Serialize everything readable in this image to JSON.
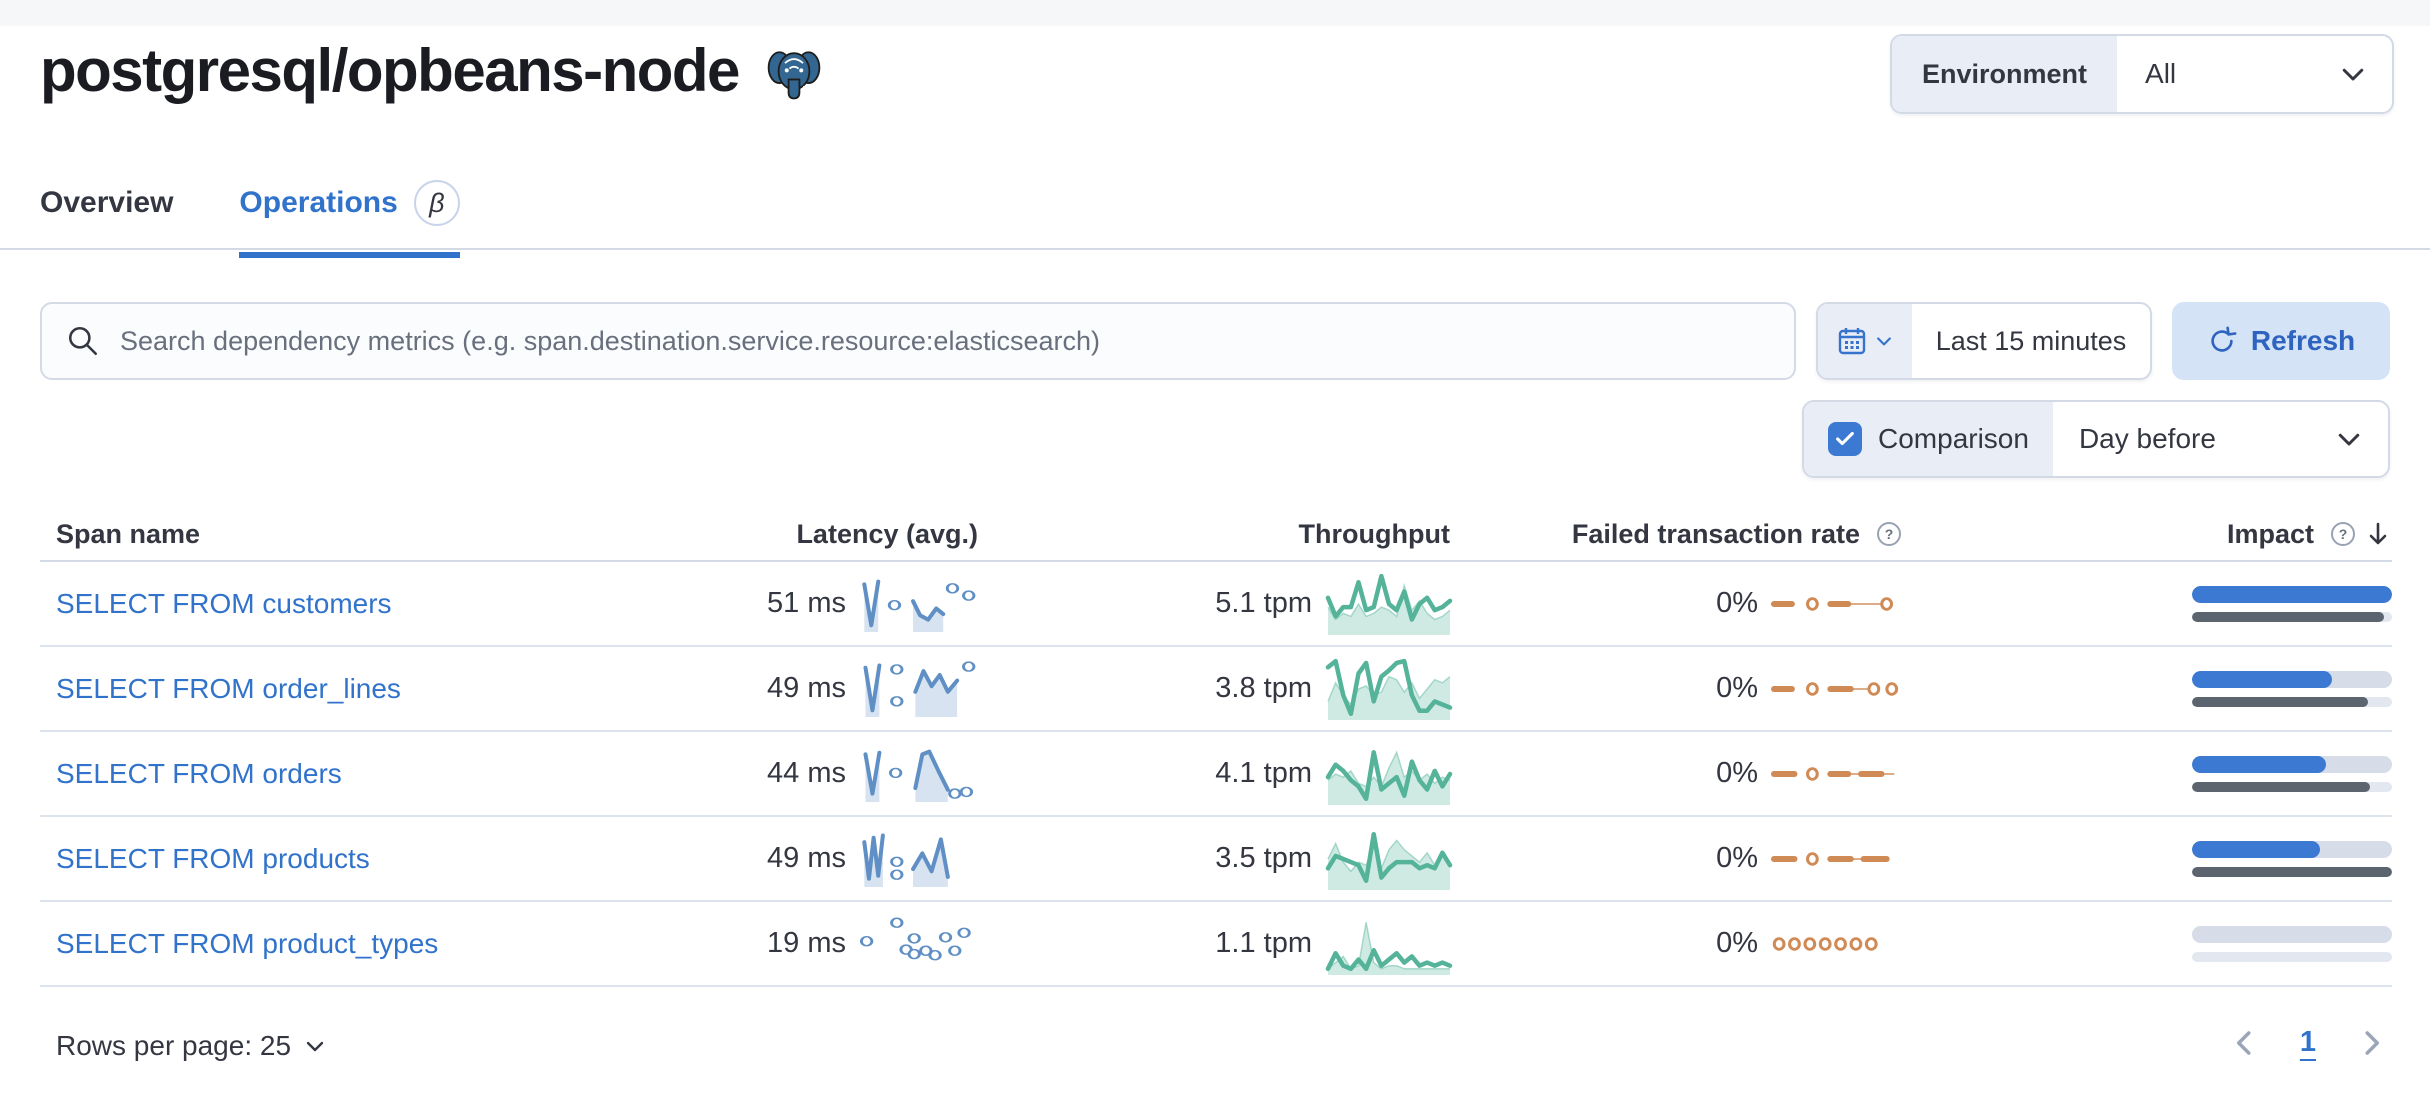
{
  "header": {
    "title": "postgresql/opbeans-node",
    "environment_label": "Environment",
    "environment_value": "All"
  },
  "tabs": [
    {
      "label": "Overview",
      "active": false
    },
    {
      "label": "Operations",
      "active": true,
      "beta": "β"
    }
  ],
  "toolbar": {
    "search_placeholder": "Search dependency metrics (e.g. span.destination.service.resource:elasticsearch)",
    "time_range": "Last 15 minutes",
    "refresh_label": "Refresh",
    "comparison_label": "Comparison",
    "comparison_checked": true,
    "comparison_value": "Day before"
  },
  "table": {
    "headers": {
      "span": "Span name",
      "latency": "Latency (avg.)",
      "throughput": "Throughput",
      "failed": "Failed transaction rate",
      "impact": "Impact"
    },
    "rows": [
      {
        "span": "SELECT FROM customers",
        "latency": "51 ms",
        "throughput": "5.1 tpm",
        "failed": "0%",
        "impact": 100,
        "impact_prev": 96,
        "latency_spark": {
          "segs": [
            [
              [
                2,
                15
              ],
              [
                8,
                88
              ],
              [
                14,
                10
              ]
            ],
            [
              [
                44,
                45
              ],
              [
                50,
                70
              ],
              [
                57,
                78
              ],
              [
                64,
                58
              ],
              [
                70,
                68
              ]
            ]
          ],
          "dots": [
            [
              28,
              52
            ],
            [
              78,
              22
            ],
            [
              92,
              35
            ]
          ]
        },
        "throughput_spark": {
          "cur": [
            40,
            70,
            55,
            55,
            15,
            60,
            55,
            5,
            50,
            60,
            30,
            75,
            50,
            40,
            60,
            55,
            45
          ],
          "prev": [
            55,
            75,
            65,
            70,
            50,
            70,
            65,
            55,
            60,
            70,
            20,
            60,
            45,
            65,
            75,
            70,
            60
          ]
        },
        "failed_spark": [
          {
            "t": "dash",
            "a": 0,
            "b": 14
          },
          {
            "t": "dot",
            "a": 30
          },
          {
            "t": "dash",
            "a": 44,
            "b": 58
          },
          {
            "t": "thin",
            "a": 58,
            "b": 86
          },
          {
            "t": "dot",
            "a": 88
          }
        ]
      },
      {
        "span": "SELECT FROM order_lines",
        "latency": "49 ms",
        "throughput": "3.8 tpm",
        "failed": "0%",
        "impact": 70,
        "impact_prev": 88,
        "latency_spark": {
          "segs": [
            [
              [
                3,
                12
              ],
              [
                9,
                88
              ],
              [
                15,
                8
              ]
            ],
            [
              [
                46,
                55
              ],
              [
                53,
                18
              ],
              [
                60,
                45
              ],
              [
                67,
                25
              ],
              [
                74,
                55
              ],
              [
                82,
                35
              ]
            ]
          ],
          "dots": [
            [
              30,
              15
            ],
            [
              30,
              72
            ],
            [
              92,
              10
            ]
          ]
        },
        "throughput_spark": {
          "cur": [
            15,
            5,
            60,
            90,
            25,
            8,
            70,
            30,
            20,
            8,
            5,
            60,
            85,
            85,
            70,
            75,
            80
          ],
          "prev": [
            70,
            40,
            60,
            75,
            50,
            45,
            60,
            55,
            30,
            35,
            55,
            40,
            65,
            50,
            35,
            40,
            30
          ]
        },
        "failed_spark": [
          {
            "t": "dash",
            "a": 0,
            "b": 14
          },
          {
            "t": "dot",
            "a": 30
          },
          {
            "t": "dash",
            "a": 44,
            "b": 60
          },
          {
            "t": "thin",
            "a": 60,
            "b": 76
          },
          {
            "t": "dot",
            "a": 78
          },
          {
            "t": "dot",
            "a": 92
          }
        ]
      },
      {
        "span": "SELECT FROM orders",
        "latency": "44 ms",
        "throughput": "4.1 tpm",
        "failed": "0%",
        "impact": 67,
        "impact_prev": 89,
        "latency_spark": {
          "segs": [
            [
              [
                3,
                15
              ],
              [
                9,
                85
              ],
              [
                15,
                12
              ]
            ],
            [
              [
                46,
                75
              ],
              [
                52,
                15
              ],
              [
                58,
                10
              ],
              [
                66,
                45
              ],
              [
                74,
                78
              ]
            ]
          ],
          "dots": [
            [
              29,
              48
            ],
            [
              80,
              85
            ],
            [
              90,
              82
            ]
          ]
        },
        "throughput_spark": {
          "cur": [
            55,
            35,
            45,
            60,
            70,
            90,
            15,
            75,
            65,
            55,
            85,
            30,
            60,
            75,
            45,
            70,
            50
          ],
          "prev": [
            60,
            50,
            55,
            45,
            65,
            70,
            55,
            70,
            40,
            15,
            55,
            45,
            60,
            50,
            65,
            55,
            60
          ]
        },
        "failed_spark": [
          {
            "t": "dash",
            "a": 0,
            "b": 16
          },
          {
            "t": "dot",
            "a": 30
          },
          {
            "t": "dash",
            "a": 44,
            "b": 58
          },
          {
            "t": "thin",
            "a": 58,
            "b": 68
          },
          {
            "t": "dash",
            "a": 68,
            "b": 84
          },
          {
            "t": "thin",
            "a": 84,
            "b": 94
          }
        ]
      },
      {
        "span": "SELECT FROM products",
        "latency": "49 ms",
        "throughput": "3.5 tpm",
        "failed": "0%",
        "impact": 64,
        "impact_prev": 100,
        "latency_spark": {
          "segs": [
            [
              [
                2,
                20
              ],
              [
                6,
                85
              ],
              [
                10,
                12
              ],
              [
                14,
                80
              ],
              [
                18,
                8
              ]
            ],
            [
              [
                44,
                68
              ],
              [
                52,
                40
              ],
              [
                60,
                72
              ],
              [
                68,
                15
              ],
              [
                74,
                82
              ]
            ]
          ],
          "dots": [
            [
              30,
              55
            ],
            [
              30,
              78
            ]
          ]
        },
        "throughput_spark": {
          "cur": [
            65,
            45,
            50,
            55,
            60,
            85,
            10,
            80,
            65,
            55,
            55,
            55,
            65,
            60,
            65,
            40,
            60
          ],
          "prev": [
            50,
            25,
            55,
            70,
            55,
            60,
            30,
            65,
            35,
            20,
            35,
            45,
            55,
            40,
            60,
            45,
            55
          ]
        },
        "failed_spark": [
          {
            "t": "dash",
            "a": 0,
            "b": 16
          },
          {
            "t": "dot",
            "a": 30
          },
          {
            "t": "dash",
            "a": 44,
            "b": 60
          },
          {
            "t": "thin",
            "a": 60,
            "b": 70
          },
          {
            "t": "dash",
            "a": 70,
            "b": 88
          }
        ]
      },
      {
        "span": "SELECT FROM product_types",
        "latency": "19 ms",
        "throughput": "1.1 tpm",
        "failed": "0%",
        "impact": 0,
        "impact_prev": 0,
        "latency_spark": {
          "segs": [],
          "dots": [
            [
              4,
              45
            ],
            [
              30,
              12
            ],
            [
              38,
              60
            ],
            [
              45,
              40
            ],
            [
              45,
              68
            ],
            [
              55,
              62
            ],
            [
              63,
              70
            ],
            [
              72,
              38
            ],
            [
              80,
              62
            ],
            [
              88,
              30
            ]
          ]
        },
        "throughput_spark": {
          "cur": [
            90,
            65,
            85,
            90,
            75,
            90,
            60,
            85,
            75,
            65,
            80,
            70,
            85,
            80,
            85,
            80,
            85
          ],
          "prev": [
            90,
            80,
            70,
            90,
            85,
            15,
            80,
            90,
            85,
            85,
            90,
            90,
            90,
            90,
            90,
            90,
            90
          ]
        },
        "failed_spark": [
          {
            "t": "dot",
            "a": 4
          },
          {
            "t": "dot",
            "a": 16
          },
          {
            "t": "dot",
            "a": 28
          },
          {
            "t": "dot",
            "a": 40
          },
          {
            "t": "dot",
            "a": 52
          },
          {
            "t": "dot",
            "a": 64
          },
          {
            "t": "dot",
            "a": 76
          }
        ]
      }
    ]
  },
  "footer": {
    "rows_per_page": "Rows per page: 25",
    "page": "1"
  },
  "colors": {
    "primary": "#3173cb",
    "latency_blue": "#5f8fc4",
    "throughput_green": "#54b399",
    "failed_orange": "#d08a55",
    "impact_blue": "#3b79d2",
    "impact_gray": "#5c646f",
    "track": "#d6dce8",
    "border": "#d3dae6",
    "text": "#343741",
    "subdued": "#69707d"
  }
}
